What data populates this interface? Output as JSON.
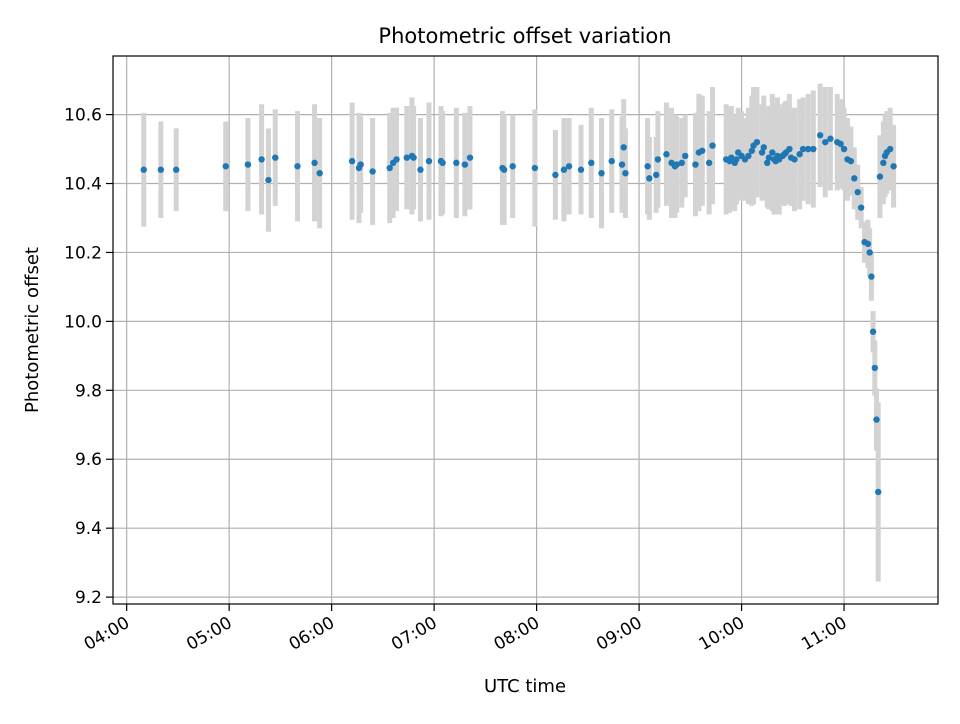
{
  "chart_data": {
    "type": "scatter",
    "title": "Photometric offset variation",
    "xlabel": "UTC time",
    "ylabel": "Photometric offset",
    "x_is_time": true,
    "xlim": [
      "03:52",
      "11:55"
    ],
    "ylim": [
      9.18,
      10.77
    ],
    "x_ticks": [
      "04:00",
      "05:00",
      "06:00",
      "07:00",
      "08:00",
      "09:00",
      "10:00",
      "11:00"
    ],
    "y_ticks": [
      "9.2",
      "9.4",
      "9.6",
      "9.8",
      "10.0",
      "10.2",
      "10.4",
      "10.6"
    ],
    "grid": true,
    "colors": {
      "point": "#1f77b4",
      "errorbar": "#d3d3d3",
      "grid": "#b0b0b0"
    },
    "series": [
      {
        "x": [
          "04:10",
          "04:20",
          "04:29",
          "04:58",
          "05:11",
          "05:19",
          "05:23",
          "05:27",
          "05:40",
          "05:50",
          "05:53",
          "06:12",
          "06:16",
          "06:17",
          "06:24",
          "06:34",
          "06:36",
          "06:38",
          "06:44",
          "06:47",
          "06:48",
          "06:52",
          "06:57",
          "07:04",
          "07:05",
          "07:13",
          "07:18",
          "07:21",
          "07:40",
          "07:41",
          "07:46",
          "07:59",
          "08:11",
          "08:16",
          "08:19",
          "08:26",
          "08:32",
          "08:38",
          "08:44",
          "08:50",
          "08:51",
          "08:52",
          "09:05",
          "09:06",
          "09:10",
          "09:11",
          "09:16",
          "09:19",
          "09:21",
          "09:22",
          "09:25",
          "09:27",
          "09:33",
          "09:35",
          "09:37",
          "09:41",
          "09:43",
          "09:51",
          "09:53",
          "09:54",
          "09:56",
          "09:57",
          "09:58",
          "10:00",
          "10:02",
          "10:04",
          "10:06",
          "10:07",
          "10:09",
          "10:12",
          "10:13",
          "10:15",
          "10:16",
          "10:18",
          "10:19",
          "10:20",
          "10:21",
          "10:22",
          "10:24",
          "10:25",
          "10:26",
          "10:28",
          "10:29",
          "10:31",
          "10:34",
          "10:36",
          "10:39",
          "10:42",
          "10:46",
          "10:49",
          "10:52",
          "10:56",
          "10:58",
          "11:00",
          "11:02",
          "11:04",
          "11:06",
          "11:08",
          "11:10",
          "11:12",
          "11:14",
          "11:15",
          "11:16",
          "11:17",
          "11:18",
          "11:19",
          "11:20",
          "11:21",
          "11:23",
          "11:24",
          "11:25",
          "11:27",
          "11:29"
        ],
        "y": [
          10.44,
          10.44,
          10.44,
          10.45,
          10.455,
          10.47,
          10.41,
          10.475,
          10.45,
          10.46,
          10.43,
          10.465,
          10.445,
          10.455,
          10.435,
          10.445,
          10.46,
          10.47,
          10.475,
          10.48,
          10.475,
          10.44,
          10.465,
          10.465,
          10.46,
          10.46,
          10.455,
          10.475,
          10.445,
          10.44,
          10.45,
          10.445,
          10.425,
          10.44,
          10.45,
          10.44,
          10.46,
          10.43,
          10.465,
          10.455,
          10.505,
          10.43,
          10.45,
          10.415,
          10.425,
          10.47,
          10.485,
          10.46,
          10.45,
          10.455,
          10.46,
          10.48,
          10.455,
          10.49,
          10.495,
          10.46,
          10.51,
          10.47,
          10.465,
          10.475,
          10.46,
          10.47,
          10.49,
          10.48,
          10.47,
          10.48,
          10.495,
          10.51,
          10.52,
          10.49,
          10.505,
          10.46,
          10.475,
          10.49,
          10.47,
          10.465,
          10.48,
          10.47,
          10.48,
          10.485,
          10.49,
          10.5,
          10.475,
          10.47,
          10.485,
          10.5,
          10.5,
          10.5,
          10.54,
          10.52,
          10.53,
          10.52,
          10.515,
          10.5,
          10.47,
          10.465,
          10.415,
          10.375,
          10.33,
          10.23,
          10.225,
          10.2,
          10.13,
          9.97,
          9.865,
          9.715,
          9.505,
          10.42,
          10.46,
          10.48,
          10.49,
          10.5,
          10.45
        ],
        "yerr": [
          0.165,
          0.14,
          0.12,
          0.13,
          0.135,
          0.16,
          0.15,
          0.14,
          0.16,
          0.17,
          0.16,
          0.17,
          0.16,
          0.14,
          0.155,
          0.16,
          0.16,
          0.15,
          0.15,
          0.17,
          0.15,
          0.15,
          0.17,
          0.16,
          0.15,
          0.16,
          0.15,
          0.15,
          0.165,
          0.16,
          0.15,
          0.17,
          0.13,
          0.15,
          0.14,
          0.13,
          0.16,
          0.16,
          0.15,
          0.14,
          0.14,
          0.13,
          0.14,
          0.12,
          0.11,
          0.14,
          0.15,
          0.16,
          0.15,
          0.14,
          0.13,
          0.12,
          0.15,
          0.17,
          0.16,
          0.15,
          0.17,
          0.16,
          0.15,
          0.15,
          0.14,
          0.13,
          0.13,
          0.13,
          0.12,
          0.14,
          0.16,
          0.17,
          0.16,
          0.14,
          0.15,
          0.13,
          0.15,
          0.17,
          0.16,
          0.15,
          0.17,
          0.16,
          0.14,
          0.15,
          0.15,
          0.16,
          0.14,
          0.15,
          0.16,
          0.15,
          0.16,
          0.17,
          0.15,
          0.16,
          0.15,
          0.14,
          0.13,
          0.12,
          0.12,
          0.1,
          0.09,
          0.08,
          0.06,
          0.06,
          0.07,
          0.07,
          0.07,
          0.06,
          0.08,
          0.09,
          0.26,
          0.12,
          0.12,
          0.12,
          0.12,
          0.12,
          0.12
        ]
      }
    ]
  }
}
